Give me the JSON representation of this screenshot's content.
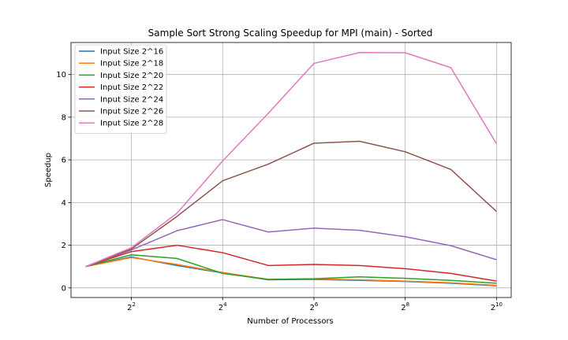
{
  "chart_data": {
    "type": "line",
    "title": "Sample Sort Strong Scaling Speedup for MPI (main) - Sorted",
    "xlabel": "Number of Processors",
    "ylabel": "Speedup",
    "x_scale": "log2",
    "x": [
      2,
      4,
      8,
      16,
      32,
      64,
      128,
      256,
      512,
      1024
    ],
    "xlim": [
      1.6,
      1280
    ],
    "ylim": [
      -0.45,
      11.5
    ],
    "xticks": [
      {
        "value": 4,
        "base": "2",
        "exp": "2"
      },
      {
        "value": 16,
        "base": "2",
        "exp": "4"
      },
      {
        "value": 64,
        "base": "2",
        "exp": "6"
      },
      {
        "value": 256,
        "base": "2",
        "exp": "8"
      },
      {
        "value": 1024,
        "base": "2",
        "exp": "10"
      }
    ],
    "yticks": [
      0,
      2,
      4,
      6,
      8,
      10
    ],
    "grid": true,
    "legend_position": "top-left",
    "series": [
      {
        "name": "Input Size 2^16",
        "color": "#1f77b4",
        "values": [
          1.0,
          1.45,
          1.05,
          0.7,
          0.38,
          0.4,
          0.35,
          0.3,
          0.22,
          0.1
        ]
      },
      {
        "name": "Input Size 2^18",
        "color": "#ff7f0e",
        "values": [
          1.0,
          1.42,
          1.1,
          0.72,
          0.4,
          0.42,
          0.38,
          0.32,
          0.24,
          0.12
        ]
      },
      {
        "name": "Input Size 2^20",
        "color": "#2ca02c",
        "values": [
          1.0,
          1.55,
          1.38,
          0.68,
          0.4,
          0.43,
          0.52,
          0.45,
          0.35,
          0.22
        ]
      },
      {
        "name": "Input Size 2^22",
        "color": "#d62728",
        "values": [
          1.0,
          1.7,
          2.0,
          1.65,
          1.05,
          1.1,
          1.05,
          0.9,
          0.68,
          0.32
        ]
      },
      {
        "name": "Input Size 2^24",
        "color": "#9467bd",
        "values": [
          1.0,
          1.78,
          2.68,
          3.2,
          2.62,
          2.8,
          2.7,
          2.4,
          1.98,
          1.32
        ]
      },
      {
        "name": "Input Size 2^26",
        "color": "#8c564b",
        "values": [
          1.0,
          1.82,
          3.35,
          5.02,
          5.8,
          6.78,
          6.87,
          6.38,
          5.55,
          3.58
        ]
      },
      {
        "name": "Input Size 2^28",
        "color": "#e377c2",
        "values": [
          1.0,
          1.88,
          3.5,
          5.95,
          8.18,
          10.52,
          11.03,
          11.02,
          10.32,
          6.75
        ]
      }
    ]
  }
}
